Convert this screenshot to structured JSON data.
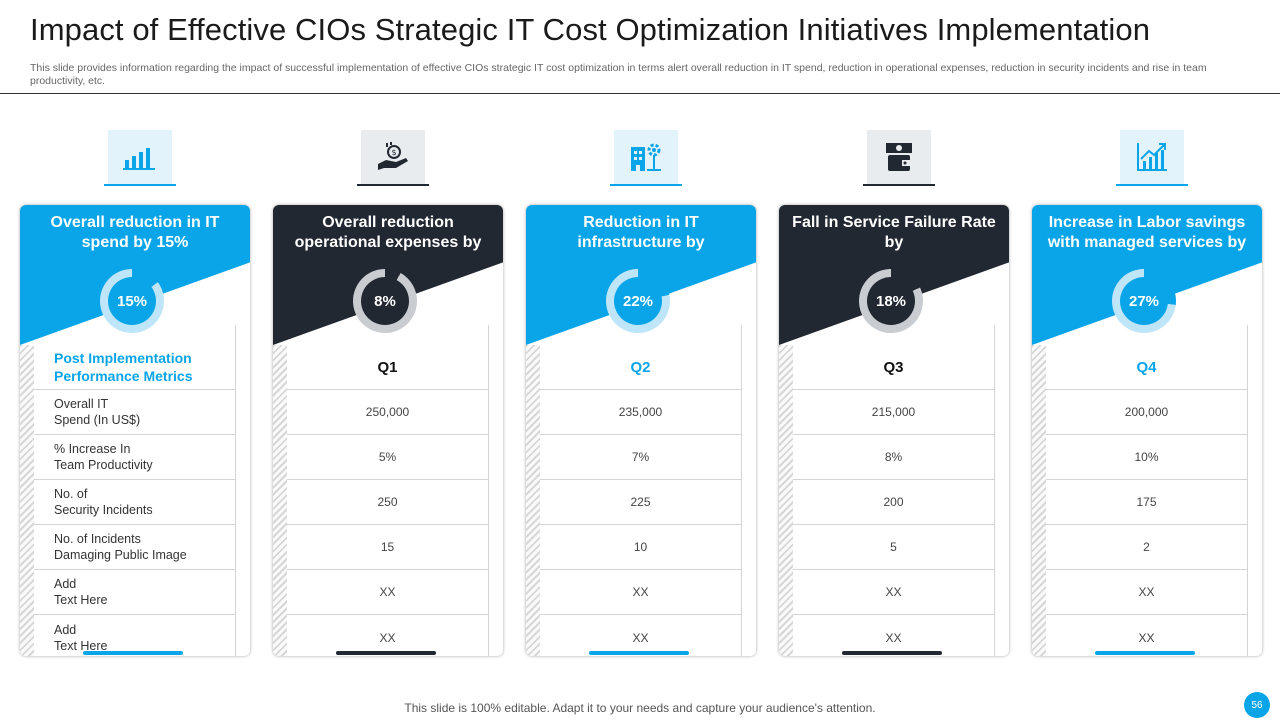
{
  "slide": {
    "title": "Impact of Effective CIOs Strategic IT Cost Optimization Initiatives Implementation",
    "subtitle": "This slide provides information regarding the impact of successful implementation of effective CIOs strategic IT cost optimization in terms alert overall reduction in IT spend, reduction in operational expenses, reduction in security incidents and rise in team productivity, etc.",
    "footer": "This slide is 100% editable. Adapt it to your needs and capture your audience's attention.",
    "page_number": "56"
  },
  "colors": {
    "accent": "#0aa5e8",
    "dark": "#222831"
  },
  "columns": [
    {
      "theme": "blue",
      "icon": "bar-chart-icon",
      "header": "Overall reduction in IT spend by 15%",
      "percent": "15%",
      "percent_value": 15
    },
    {
      "theme": "dark",
      "icon": "money-hand-icon",
      "header": "Overall reduction operational expenses by",
      "percent": "8%",
      "percent_value": 8
    },
    {
      "theme": "blue",
      "icon": "infrastructure-gear-icon",
      "header": "Reduction in IT infrastructure by",
      "percent": "22%",
      "percent_value": 22
    },
    {
      "theme": "dark",
      "icon": "wallet-cash-icon",
      "header": "Fall in Service Failure Rate by",
      "percent": "18%",
      "percent_value": 18
    },
    {
      "theme": "blue",
      "icon": "growth-chart-icon",
      "header": "Increase in Labor savings with managed services by",
      "percent": "27%",
      "percent_value": 27
    }
  ],
  "metrics": {
    "heading": "Post Implementation Performance Metrics",
    "labels": [
      "Overall  IT\nSpend  (In US$)",
      "% Increase  In\nTeam  Productivity",
      "No.  of\nSecurity Incidents",
      "No. of Incidents\nDamaging  Public Image",
      "Add\nText Here",
      "Add\nText Here"
    ]
  },
  "quarters": [
    {
      "label": "Q1",
      "values": [
        "250,000",
        "5%",
        "250",
        "15",
        "XX",
        "XX"
      ]
    },
    {
      "label": "Q2",
      "values": [
        "235,000",
        "7%",
        "225",
        "10",
        "XX",
        "XX"
      ]
    },
    {
      "label": "Q3",
      "values": [
        "215,000",
        "8%",
        "200",
        "5",
        "XX",
        "XX"
      ]
    },
    {
      "label": "Q4",
      "values": [
        "200,000",
        "10%",
        "175",
        "2",
        "XX",
        "XX"
      ]
    }
  ]
}
